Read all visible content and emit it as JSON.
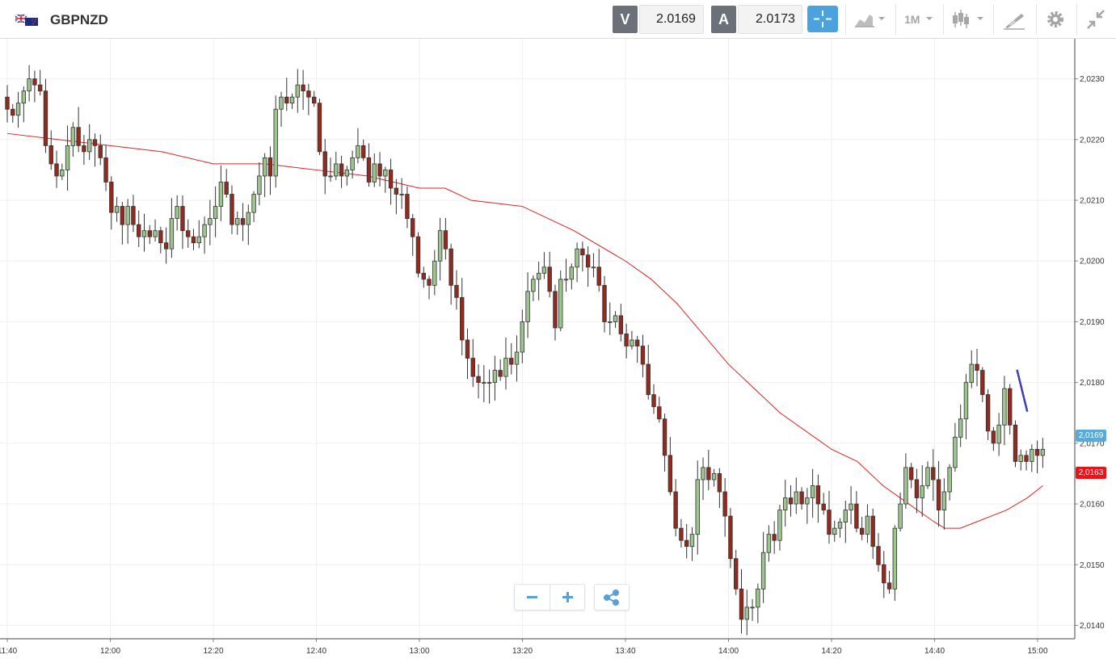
{
  "header": {
    "symbol": "GBPNZD",
    "flag_icon": "gbp-nzd-flag-icon",
    "sell": {
      "label": "V",
      "value": "2.0169"
    },
    "buy": {
      "label": "A",
      "value": "2.0173"
    },
    "timeframe": "1M",
    "colors": {
      "accent": "#4aa3df",
      "label_bg": "#6b7079"
    }
  },
  "price_tags": {
    "current": {
      "value": "2,0169",
      "color": "#5aa9d6"
    },
    "ma": {
      "value": "2,0163",
      "color": "#e8141b"
    }
  },
  "chart_data": {
    "type": "candlestick",
    "title": "",
    "x_ticks": [
      "11:40",
      "12:00",
      "12:20",
      "12:40",
      "13:00",
      "13:20",
      "13:40",
      "14:00",
      "14:20",
      "14:40",
      "15:00"
    ],
    "y_ticks": [
      "2,0140",
      "2,0150",
      "2,0160",
      "2,0170",
      "2,0180",
      "2,0190",
      "2,0200",
      "2,0210",
      "2,0220",
      "2,0230"
    ],
    "ylim": [
      2.01378,
      2.02366
    ],
    "x_range": [
      "11:40",
      "15:01"
    ],
    "grid": true,
    "colors": {
      "up": "#9dc58f",
      "down": "#922a1e",
      "ma": "#e02020",
      "drawing": "#3d3db8"
    },
    "close_series": [
      2.0225,
      2.0224,
      2.0226,
      2.0228,
      2.023,
      2.0229,
      2.0228,
      2.0219,
      2.0216,
      2.0214,
      2.0215,
      2.0219,
      2.0222,
      2.0219,
      2.0218,
      2.022,
      2.0219,
      2.0217,
      2.0213,
      2.0208,
      2.0209,
      2.0206,
      2.0209,
      2.0206,
      2.0204,
      2.0205,
      2.0204,
      2.0205,
      2.0203,
      2.0202,
      2.0207,
      2.0209,
      2.0205,
      2.0204,
      2.0203,
      2.0204,
      2.0206,
      2.0207,
      2.0209,
      2.0213,
      2.0211,
      2.0206,
      2.0207,
      2.0206,
      2.0208,
      2.0211,
      2.0214,
      2.0217,
      2.0214,
      2.0225,
      2.0227,
      2.0226,
      2.0227,
      2.0229,
      2.0228,
      2.0227,
      2.0226,
      2.0218,
      2.0214,
      2.0214,
      2.0216,
      2.0214,
      2.0215,
      2.0217,
      2.0219,
      2.0217,
      2.0213,
      2.0216,
      2.0214,
      2.0215,
      2.0212,
      2.0211,
      2.0211,
      2.0207,
      2.0204,
      2.0198,
      2.0197,
      2.0196,
      2.02,
      2.0205,
      2.0202,
      2.0196,
      2.0194,
      2.0187,
      2.0184,
      2.0181,
      2.018,
      2.018,
      2.018,
      2.0182,
      2.0181,
      2.0184,
      2.0183,
      2.0185,
      2.019,
      2.0195,
      2.0197,
      2.0198,
      2.0199,
      2.0195,
      2.0189,
      2.0197,
      2.0197,
      2.0199,
      2.0202,
      2.0201,
      2.0199,
      2.0199,
      2.0196,
      2.019,
      2.019,
      2.0191,
      2.0188,
      2.0186,
      2.0187,
      2.0186,
      2.0183,
      2.0178,
      2.0176,
      2.0174,
      2.0168,
      2.0162,
      2.0156,
      2.0154,
      2.0153,
      2.0155,
      2.0164,
      2.0166,
      2.0164,
      2.0165,
      2.0162,
      2.0158,
      2.0151,
      2.0146,
      2.0141,
      2.0143,
      2.0143,
      2.0146,
      2.0152,
      2.0155,
      2.0154,
      2.0159,
      2.0161,
      2.016,
      2.0162,
      2.016,
      2.0161,
      2.0163,
      2.016,
      2.0159,
      2.0155,
      2.0156,
      2.0157,
      2.0159,
      2.016,
      2.0156,
      2.0155,
      2.0158,
      2.0153,
      2.015,
      2.0147,
      2.0146,
      2.0156,
      2.016,
      2.0166,
      2.0164,
      2.0161,
      2.0163,
      2.0166,
      2.0164,
      2.0159,
      2.0162,
      2.0166,
      2.0171,
      2.0174,
      2.018,
      2.0183,
      2.0182,
      2.0178,
      2.0172,
      2.017,
      2.0173,
      2.0179,
      2.0173,
      2.0167,
      2.0168,
      2.0167,
      2.0169,
      2.0168,
      2.0169
    ],
    "ma_series": [
      2.0221,
      2.022,
      2.0219,
      2.0218,
      2.0216,
      2.0216,
      2.0215,
      2.0214,
      2.0212,
      2.0212,
      2.021,
      2.0209,
      2.0205,
      2.02,
      2.0197,
      2.0193,
      2.0188,
      2.0183,
      2.0179,
      2.0175,
      2.0169,
      2.0167,
      2.0163,
      2.016,
      2.0157,
      2.0156,
      2.0156,
      2.0157,
      2.0158,
      2.0159,
      2.0161,
      2.0163
    ],
    "ma_x": [
      "11:40",
      "11:50",
      "12:00",
      "12:10",
      "12:20",
      "12:30",
      "12:40",
      "12:50",
      "13:00",
      "13:05",
      "13:10",
      "13:20",
      "13:30",
      "13:40",
      "13:45",
      "13:50",
      "13:55",
      "14:00",
      "14:05",
      "14:10",
      "14:20",
      "14:25",
      "14:30",
      "14:35",
      "14:40",
      "14:42",
      "14:45",
      "14:48",
      "14:51",
      "14:54",
      "14:58",
      "15:01"
    ],
    "drawing_line": {
      "from": [
        "14:56",
        2.01821
      ],
      "to": [
        "14:58",
        2.01752
      ]
    }
  }
}
